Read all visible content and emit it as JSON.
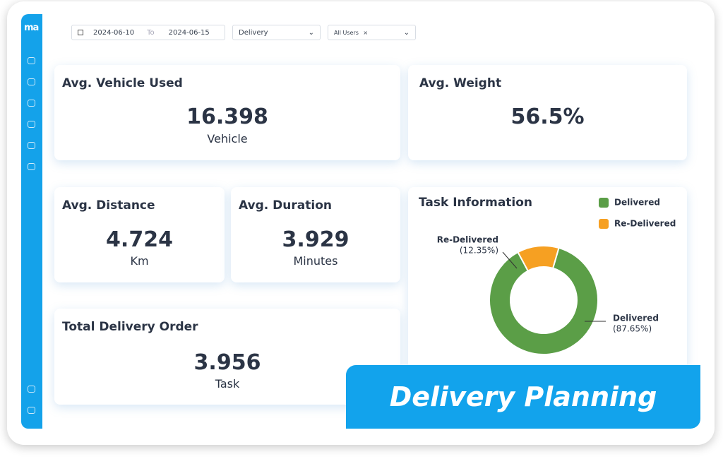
{
  "logo": "ma",
  "filters": {
    "date_from": "2024-06-10",
    "to": "To",
    "date_to": "2024-06-15",
    "type": "Delivery",
    "users_tag": "All Users",
    "users_remove": "×"
  },
  "cards": [
    {
      "title": "Avg. Vehicle Used",
      "value": "16.398",
      "unit": "Vehicle"
    },
    {
      "title": "Avg. Weight",
      "value": "56.5%"
    },
    {
      "title": "Avg. Distance",
      "value": "4.724",
      "unit": "Km"
    },
    {
      "title": "Avg. Duration",
      "value": "3.929",
      "unit": "Minutes"
    },
    {
      "title": "Total Delivery Order",
      "value": "3.956",
      "unit": "Task"
    }
  ],
  "chart_data": {
    "type": "pie",
    "title": "Task Information",
    "categories": [
      "Delivered",
      "Re-Delivered"
    ],
    "values": [
      87.65,
      12.35
    ],
    "value_labels": [
      "(87.65%)",
      "(12.35%)"
    ],
    "colors": [
      "#5b9e47",
      "#f6a022"
    ]
  },
  "banner": "Delivery Planning"
}
